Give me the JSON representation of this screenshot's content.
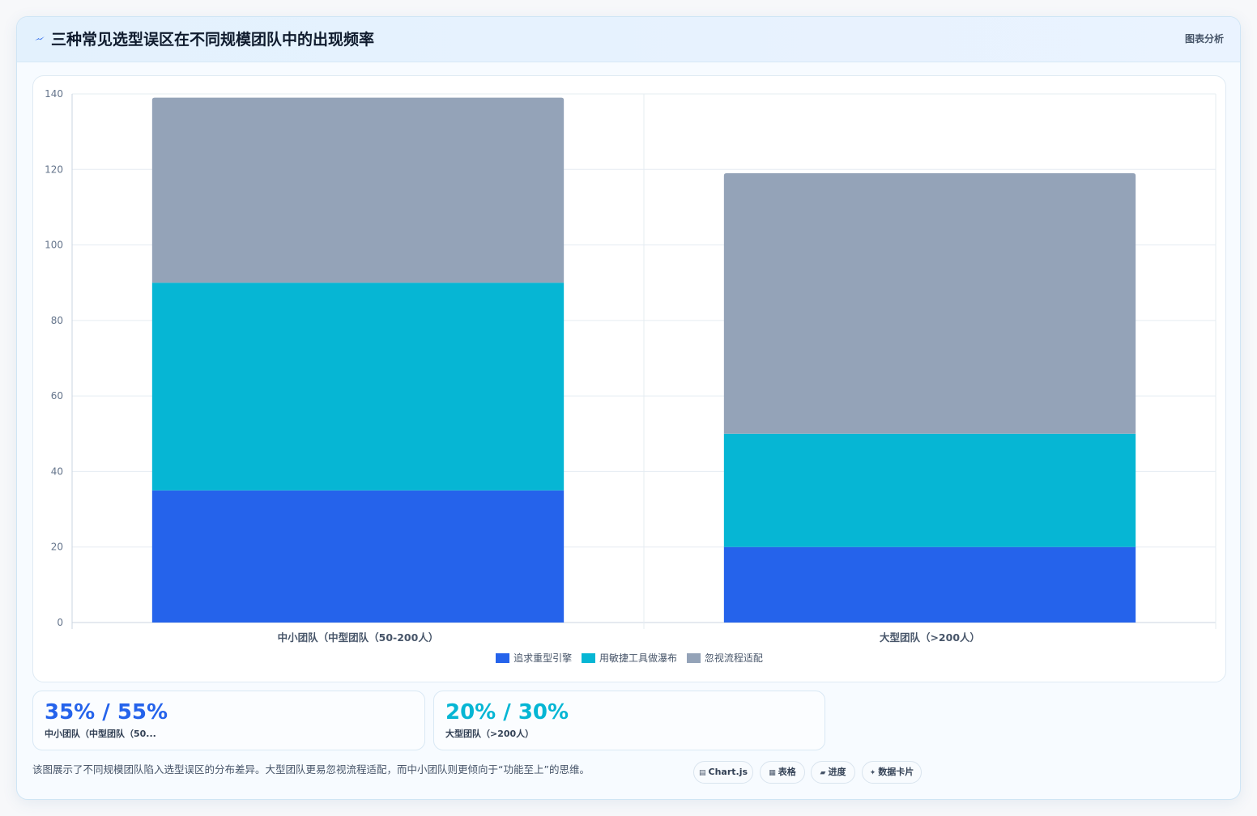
{
  "header": {
    "title": "三种常见选型误区在不同规模团队中的出现频率",
    "right_label": "图表分析",
    "icon": "lightning-icon"
  },
  "chart_data": {
    "type": "bar",
    "stacked": true,
    "categories": [
      "中小团队（中型团队（50-200人）",
      "大型团队（>200人）"
    ],
    "series": [
      {
        "name": "追求重型引擎",
        "values": [
          35,
          20
        ],
        "color": "#2563eb"
      },
      {
        "name": "用敏捷工具做瀑布",
        "values": [
          55,
          30
        ],
        "color": "#06b6d4"
      },
      {
        "name": "忽视流程适配",
        "values": [
          49,
          69
        ],
        "color": "#94a3b8"
      }
    ],
    "ylim": [
      0,
      140
    ],
    "yticks": [
      0,
      20,
      40,
      60,
      80,
      100,
      120,
      140
    ],
    "grid": true,
    "legend": "bottom"
  },
  "stats": [
    {
      "value": "35% / 55%",
      "label": "中小团队（中型团队（50...",
      "color": "#2563eb"
    },
    {
      "value": "20% / 30%",
      "label": "大型团队（>200人）",
      "color": "#06b6d4"
    }
  ],
  "footer": {
    "text": "该图展示了不同规模团队陷入选型误区的分布差异。大型团队更易忽视流程适配，而中小团队则更倾向于“功能至上”的思维。",
    "chips": [
      {
        "icon": "▤",
        "label": "Chart.js"
      },
      {
        "icon": "▦",
        "label": "表格"
      },
      {
        "icon": "▰",
        "label": "进度"
      },
      {
        "icon": "✦",
        "label": "数据卡片"
      }
    ]
  }
}
